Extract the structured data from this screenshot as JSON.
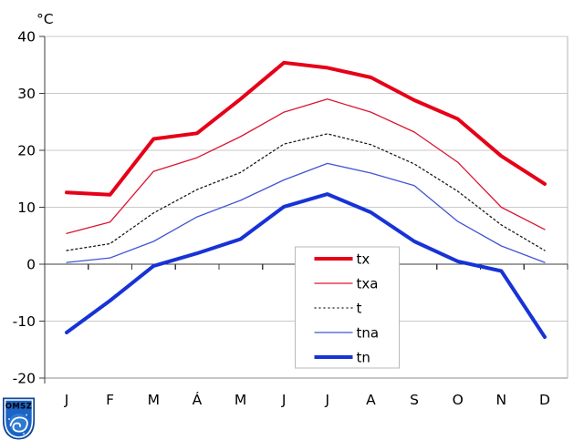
{
  "chart_data": {
    "type": "line",
    "title": "",
    "y_axis": {
      "label": "°C",
      "ticks": [
        40,
        30,
        20,
        10,
        0,
        -10,
        -20
      ],
      "min": -20,
      "max": 40
    },
    "x_axis": {
      "tick_labels_are_months": true
    },
    "categories": [
      "J",
      "F",
      "M",
      "Á",
      "M",
      "J",
      "J",
      "A",
      "S",
      "O",
      "N",
      "D"
    ],
    "series": [
      {
        "name": "tx",
        "color": "#e60018",
        "width": 4,
        "dash": null,
        "values": [
          12.6,
          12.2,
          22.0,
          23.0,
          29.0,
          35.4,
          34.5,
          32.8,
          28.8,
          25.5,
          19.0,
          14.1
        ]
      },
      {
        "name": "txa",
        "color": "#dc1430",
        "width": 1.3,
        "dash": null,
        "values": [
          5.4,
          7.4,
          16.3,
          18.7,
          22.4,
          26.7,
          29.0,
          26.7,
          23.2,
          17.9,
          10.0,
          6.1
        ]
      },
      {
        "name": "t",
        "color": "#1a1a1a",
        "width": 1.3,
        "dash": "2,3",
        "values": [
          2.4,
          3.6,
          9.0,
          13.1,
          16.1,
          21.1,
          22.9,
          21.0,
          17.6,
          12.8,
          6.9,
          2.4
        ]
      },
      {
        "name": "tna",
        "color": "#4155d2",
        "width": 1.3,
        "dash": null,
        "values": [
          0.3,
          1.1,
          4.0,
          8.3,
          11.2,
          14.8,
          17.7,
          16.0,
          13.8,
          7.5,
          3.2,
          0.3
        ]
      },
      {
        "name": "tn",
        "color": "#1733d6",
        "width": 4,
        "dash": null,
        "values": [
          -12.0,
          -6.4,
          -0.3,
          1.9,
          4.4,
          10.1,
          12.3,
          9.1,
          4.0,
          0.5,
          -1.2,
          -12.8
        ]
      }
    ],
    "legend": {
      "position": "inside-bottom-center",
      "entries": [
        "tx",
        "txa",
        "t",
        "tna",
        "tn"
      ]
    },
    "grid": true,
    "colors": {
      "gridline": "#c9c9c9",
      "axis": "#3c3c3c",
      "frame_bottom": "#8c8c8c",
      "frame_right": "#b5b5b5",
      "legend_border": "#b9b9b9",
      "background": "#ffffff"
    }
  },
  "logo": {
    "text": "OMSZ"
  }
}
